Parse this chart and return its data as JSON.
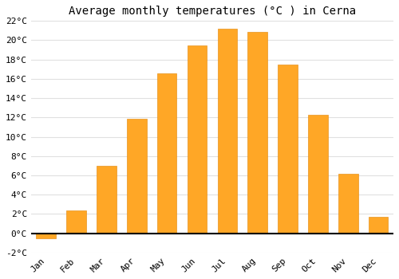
{
  "title": "Average monthly temperatures (°C ) in Cerna",
  "months": [
    "Jan",
    "Feb",
    "Mar",
    "Apr",
    "May",
    "Jun",
    "Jul",
    "Aug",
    "Sep",
    "Oct",
    "Nov",
    "Dec"
  ],
  "values": [
    -0.5,
    2.4,
    7.0,
    11.9,
    16.6,
    19.5,
    21.2,
    20.9,
    17.5,
    12.3,
    6.2,
    1.7
  ],
  "bar_color": "#FFA726",
  "bar_edge_color": "#E69320",
  "ylim": [
    -2,
    22
  ],
  "yticks": [
    -2,
    0,
    2,
    4,
    6,
    8,
    10,
    12,
    14,
    16,
    18,
    20,
    22
  ],
  "ytick_labels": [
    "-2°C",
    "0°C",
    "2°C",
    "4°C",
    "6°C",
    "8°C",
    "10°C",
    "12°C",
    "14°C",
    "16°C",
    "18°C",
    "20°C",
    "22°C"
  ],
  "background_color": "#FFFFFF",
  "grid_color": "#E0E0E0",
  "title_fontsize": 10,
  "tick_fontsize": 8,
  "xlabel_rotation": 45
}
